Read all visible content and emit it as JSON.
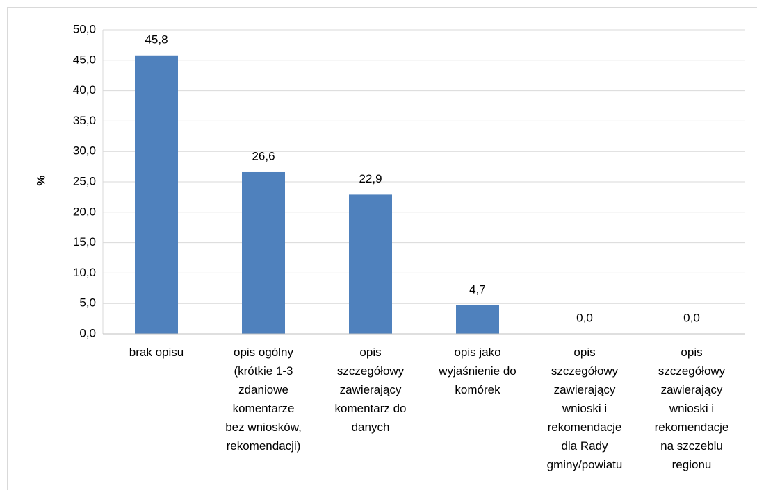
{
  "chart_data": {
    "type": "bar",
    "y_label": "%",
    "categories": [
      "brak opisu",
      "opis ogólny\n(krótkie 1-3\nzdaniowe\nkomentarze\nbez wniosków,\nrekomendacji)",
      "opis\nszczegółowy\nzawierający\nkomentarz do\ndanych",
      "opis jako\nwyjaśnienie do\nkomórek",
      "opis\nszczegółowy\nzawierający\nwnioski  i\nrekomendacje\ndla Rady\ngminy/powiatu",
      "opis\nszczegółowy\nzawierający\nwnioski  i\nrekomendacje\nna szczeblu\nregionu"
    ],
    "values": [
      45.8,
      26.6,
      22.9,
      4.7,
      0.0,
      0.0
    ],
    "value_labels": [
      "45,8",
      "26,6",
      "22,9",
      "4,7",
      "0,0",
      "0,0"
    ],
    "color": "#4f81bd",
    "ylim": [
      0,
      50
    ],
    "yticks": [
      {
        "value": 0,
        "label": "0,0"
      },
      {
        "value": 5,
        "label": "5,0"
      },
      {
        "value": 10,
        "label": "10,0"
      },
      {
        "value": 15,
        "label": "15,0"
      },
      {
        "value": 20,
        "label": "20,0"
      },
      {
        "value": 25,
        "label": "25,0"
      },
      {
        "value": 30,
        "label": "30,0"
      },
      {
        "value": 35,
        "label": "35,0"
      },
      {
        "value": 40,
        "label": "40,0"
      },
      {
        "value": 45,
        "label": "45,0"
      },
      {
        "value": 50,
        "label": "50,0"
      }
    ],
    "grid": true
  }
}
